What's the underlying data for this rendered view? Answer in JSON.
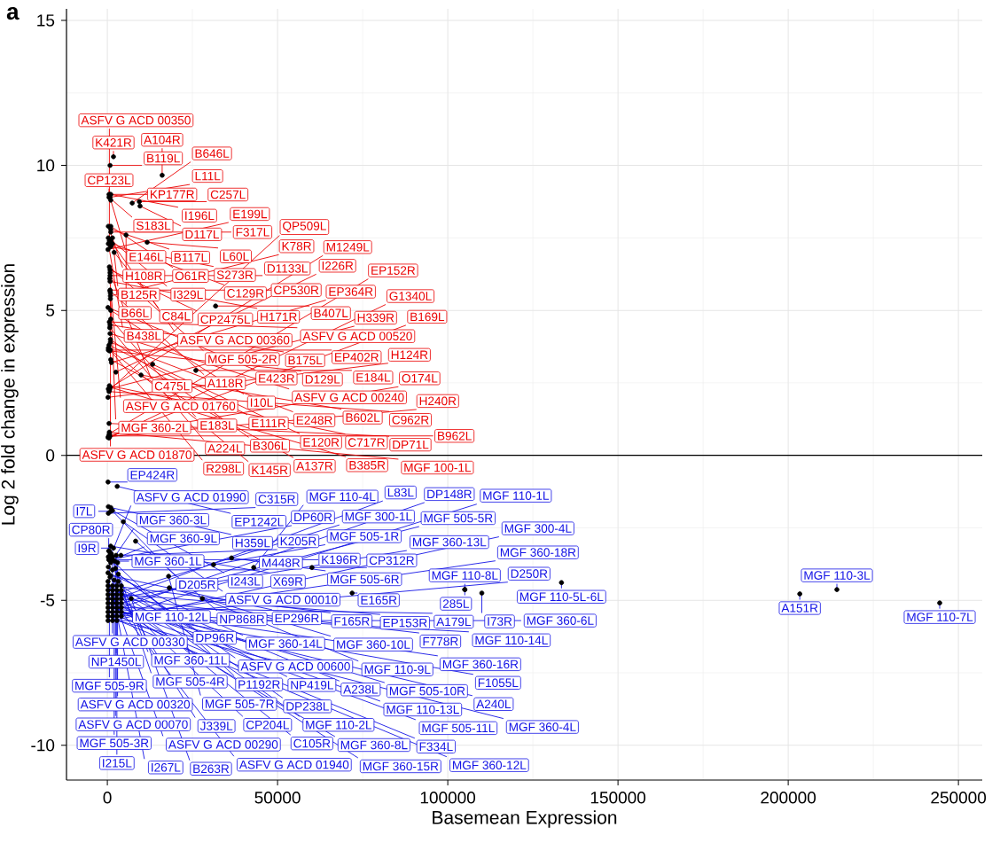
{
  "chart_data": {
    "type": "scatter",
    "title": "a",
    "xlabel": "Basemean Expression",
    "ylabel": "Log 2 fold change in expression",
    "xlim": [
      -12000,
      257000
    ],
    "ylim": [
      -11.2,
      15.4
    ],
    "xticks": [
      0,
      50000,
      100000,
      150000,
      200000,
      250000
    ],
    "yticks": [
      -10,
      -5,
      0,
      5,
      10,
      15
    ],
    "grid": true,
    "marker": "circle",
    "color": "#000000",
    "ref_lines": [
      {
        "axis": "y",
        "value": 0,
        "color": "#000000"
      }
    ],
    "x": [
      1800,
      500,
      800,
      800,
      500,
      1000,
      1000,
      9600,
      300,
      16100,
      1000,
      800,
      1500,
      1000,
      9400,
      300,
      7300,
      5500,
      2000,
      11700,
      1000,
      300,
      1000,
      600,
      1000,
      1500,
      800,
      600,
      800,
      800,
      700,
      800,
      200,
      800,
      800,
      900,
      900,
      900,
      200,
      31800,
      1000,
      1000,
      800,
      700,
      500,
      300,
      600,
      800,
      900,
      900,
      800,
      700,
      300,
      13300,
      26000,
      1000,
      1200,
      9900,
      2500,
      600,
      800,
      700,
      600,
      500,
      300,
      200,
      500,
      600,
      600,
      700,
      400,
      500,
      600,
      200,
      3200,
      2200,
      1500,
      400,
      1000,
      1200,
      1500,
      200,
      2900,
      1000,
      300,
      1500,
      1000,
      4700,
      300,
      1800,
      2600,
      1000,
      300,
      8300,
      600,
      900,
      3000,
      1500,
      200,
      1000,
      2400,
      1000,
      3200,
      4000,
      500,
      300,
      500,
      36500,
      31200,
      43000,
      60100,
      18000,
      800,
      2000,
      200,
      105000,
      133400,
      214300,
      203400,
      244500,
      105000,
      110000,
      200,
      1500,
      18200,
      2800,
      4100,
      71900,
      200,
      1500,
      27900,
      7000,
      2800,
      4100,
      200,
      1500,
      2800,
      4100,
      200,
      1500,
      2800,
      4100,
      200,
      1500,
      2800,
      4100,
      200,
      1500,
      2800,
      4100,
      200,
      1500,
      2800,
      4100,
      200,
      1500,
      2800,
      4100,
      200,
      1500,
      2800
    ],
    "values": [
      10.3,
      9.0,
      10.0,
      9.0,
      8.9,
      9.0,
      8.8,
      8.6,
      7.9,
      9.66,
      7.8,
      8.9,
      7.5,
      7.9,
      8.75,
      7.5,
      8.7,
      7.6,
      7.0,
      7.35,
      7.2,
      7.3,
      7.7,
      7.4,
      7.4,
      7.3,
      6.4,
      6.5,
      6.3,
      6.2,
      6.1,
      6.0,
      7.1,
      5.67,
      5.7,
      5.6,
      5.5,
      5.4,
      5.1,
      5.15,
      5.0,
      4.7,
      4.5,
      4.4,
      3.8,
      3.7,
      4.6,
      4.2,
      4.0,
      3.9,
      3.65,
      3.6,
      3.63,
      3.14,
      2.93,
      3.3,
      3.2,
      2.77,
      2.87,
      2.4,
      2.35,
      2.3,
      2.25,
      2.2,
      2.29,
      2.0,
      1.1,
      0.8,
      0.7,
      0.65,
      0.67,
      0.6,
      0.75,
      0.62,
      -4.35,
      -3.65,
      -3.6,
      -3.3,
      -3.7,
      -3.4,
      -3.5,
      -0.92,
      -1.07,
      -1.8,
      -1.77,
      -1.9,
      -1.93,
      -2.29,
      -2.0,
      -3.2,
      -3.45,
      -3.4,
      -3.85,
      -2.96,
      -3.3,
      -3.4,
      -3.7,
      -3.95,
      -4.05,
      -3.13,
      -3.9,
      -4.15,
      -4.1,
      -3.45,
      -3.6,
      -3.5,
      -3.6,
      -3.54,
      -3.77,
      -3.87,
      -3.87,
      -4.17,
      -4.2,
      -4.3,
      -4.35,
      -4.63,
      -4.39,
      -4.63,
      -4.78,
      -5.09,
      -4.63,
      -4.75,
      -4.5,
      -4.5,
      -4.57,
      -4.5,
      -4.5,
      -4.75,
      -4.65,
      -4.65,
      -4.94,
      -4.94,
      -4.65,
      -4.65,
      -4.8,
      -4.8,
      -4.8,
      -4.8,
      -4.95,
      -4.95,
      -4.95,
      -4.95,
      -5.1,
      -5.1,
      -5.1,
      -5.1,
      -5.25,
      -5.25,
      -5.25,
      -5.25,
      -5.4,
      -5.4,
      -5.4,
      -5.4,
      -5.55,
      -5.55,
      -5.55,
      -5.55,
      -5.7,
      -5.7,
      -5.7
    ],
    "annotations": [
      {
        "text": "K421R",
        "x": 1800,
        "y": 10.3
      },
      {
        "text": "CP123L",
        "x": 500,
        "y": 9.0
      },
      {
        "text": "B119L",
        "x": 800,
        "y": 10.0
      },
      {
        "text": "KP177R",
        "x": 800,
        "y": 9.0
      },
      {
        "text": "S183L",
        "x": 500,
        "y": 8.9
      },
      {
        "text": "I196L",
        "x": 1000,
        "y": 9.0
      },
      {
        "text": "E146L",
        "x": 1000,
        "y": 8.8
      },
      {
        "text": "D117L",
        "x": 9600,
        "y": 8.6
      },
      {
        "text": "H108R",
        "x": 300,
        "y": 7.9
      },
      {
        "text": "A104R",
        "x": 16100,
        "y": 9.66
      },
      {
        "text": "B117L",
        "x": 1000,
        "y": 7.8
      },
      {
        "text": "L11L",
        "x": 800,
        "y": 8.9
      },
      {
        "text": "B125R",
        "x": 1500,
        "y": 7.5
      },
      {
        "text": "O61R",
        "x": 1000,
        "y": 7.9
      },
      {
        "text": "C257L",
        "x": 9400,
        "y": 8.75
      },
      {
        "text": "I329L",
        "x": 300,
        "y": 7.5
      },
      {
        "text": "B646L",
        "x": 7300,
        "y": 8.7
      },
      {
        "text": "B66L",
        "x": 5500,
        "y": 7.6
      },
      {
        "text": "C84L",
        "x": 2000,
        "y": 7.0
      },
      {
        "text": "L60L",
        "x": 11700,
        "y": 7.35
      },
      {
        "text": "S273R",
        "x": 1000,
        "y": 7.2
      },
      {
        "text": "B438L",
        "x": 300,
        "y": 7.3
      },
      {
        "text": "F317L",
        "x": 1000,
        "y": 7.7
      },
      {
        "text": "ASFV G ACD 00350",
        "x": 600,
        "y": 7.4
      },
      {
        "text": "ASFV G ACD 00360",
        "x": 1000,
        "y": 7.4
      },
      {
        "text": "C129R",
        "x": 1500,
        "y": 7.3
      },
      {
        "text": "CP2475L",
        "x": 800,
        "y": 6.4
      },
      {
        "text": "MGF 505-2R",
        "x": 600,
        "y": 6.5
      },
      {
        "text": "C475L",
        "x": 800,
        "y": 6.3
      },
      {
        "text": "D1133L",
        "x": 800,
        "y": 6.2
      },
      {
        "text": "ASFV G ACD 01760",
        "x": 700,
        "y": 6.1
      },
      {
        "text": "H171R",
        "x": 800,
        "y": 6.0
      },
      {
        "text": "E199L",
        "x": 200,
        "y": 7.1
      },
      {
        "text": "A118R",
        "x": 800,
        "y": 5.67
      },
      {
        "text": "CP530R",
        "x": 800,
        "y": 5.7
      },
      {
        "text": "MGF 360-2L",
        "x": 900,
        "y": 5.6
      },
      {
        "text": "K78R",
        "x": 900,
        "y": 5.5
      },
      {
        "text": "ASFV G ACD 01870",
        "x": 900,
        "y": 5.4
      },
      {
        "text": "E423R",
        "x": 200,
        "y": 5.1
      },
      {
        "text": "B407L",
        "x": 31800,
        "y": 5.15
      },
      {
        "text": "I10L",
        "x": 1000,
        "y": 5.0
      },
      {
        "text": "E183L",
        "x": 1000,
        "y": 4.7
      },
      {
        "text": "B175L",
        "x": 800,
        "y": 4.5
      },
      {
        "text": "A224L",
        "x": 700,
        "y": 4.4
      },
      {
        "text": "E111R",
        "x": 500,
        "y": 3.8
      },
      {
        "text": "R298L",
        "x": 300,
        "y": 3.7
      },
      {
        "text": "ASFV G ACD 00520",
        "x": 600,
        "y": 4.6
      },
      {
        "text": "ASFV G ACD 00240",
        "x": 800,
        "y": 4.2
      },
      {
        "text": "B306L",
        "x": 900,
        "y": 4.0
      },
      {
        "text": "E248R",
        "x": 900,
        "y": 3.9
      },
      {
        "text": "K145R",
        "x": 800,
        "y": 3.65
      },
      {
        "text": "D129L",
        "x": 700,
        "y": 3.6
      },
      {
        "text": "EP402R",
        "x": 300,
        "y": 3.63
      },
      {
        "text": "E120R",
        "x": 13300,
        "y": 3.14
      },
      {
        "text": "E184L",
        "x": 26000,
        "y": 2.93
      },
      {
        "text": "A137R",
        "x": 1000,
        "y": 3.3
      },
      {
        "text": "EP364R",
        "x": 1200,
        "y": 3.2
      },
      {
        "text": "B602L",
        "x": 9900,
        "y": 2.77
      },
      {
        "text": "I226R",
        "x": 2500,
        "y": 2.87
      },
      {
        "text": "C717R",
        "x": 600,
        "y": 2.4
      },
      {
        "text": "B385R",
        "x": 800,
        "y": 2.35
      },
      {
        "text": "H339R",
        "x": 700,
        "y": 2.3
      },
      {
        "text": "QP509L",
        "x": 600,
        "y": 2.25
      },
      {
        "text": "C962R",
        "x": 500,
        "y": 2.2
      },
      {
        "text": "M1249L",
        "x": 300,
        "y": 2.29
      },
      {
        "text": "H124R",
        "x": 200,
        "y": 2.0
      },
      {
        "text": "DP71L",
        "x": 500,
        "y": 1.1
      },
      {
        "text": "MGF 100-1L",
        "x": 600,
        "y": 0.8
      },
      {
        "text": "O174L",
        "x": 600,
        "y": 0.7
      },
      {
        "text": "H240R",
        "x": 700,
        "y": 0.65
      },
      {
        "text": "B962L",
        "x": 400,
        "y": 0.67
      },
      {
        "text": "G1340L",
        "x": 500,
        "y": 0.6
      },
      {
        "text": "EP152R",
        "x": 600,
        "y": 0.75
      },
      {
        "text": "B169L",
        "x": 200,
        "y": 0.62
      },
      {
        "text": "MGF 110-12L",
        "x": 3200,
        "y": -4.35
      },
      {
        "text": "MGF 360-1L",
        "x": 2200,
        "y": -3.65
      },
      {
        "text": "MGF 360-9L",
        "x": 1500,
        "y": -3.6
      },
      {
        "text": "CP80R",
        "x": 400,
        "y": -3.3
      },
      {
        "text": "MGF 360-3L",
        "x": 1000,
        "y": -3.7
      },
      {
        "text": "ASFV G ACD 01990",
        "x": 1200,
        "y": -3.4
      },
      {
        "text": "ASFV G ACD 00330",
        "x": 1500,
        "y": -3.5
      },
      {
        "text": "EP424R",
        "x": 200,
        "y": -0.92
      },
      {
        "text": "EP1242L",
        "x": 2900,
        "y": -1.07
      },
      {
        "text": "H359L",
        "x": 1000,
        "y": -1.8
      },
      {
        "text": "D205R",
        "x": 300,
        "y": -1.77
      },
      {
        "text": "I243L",
        "x": 1500,
        "y": -1.9
      },
      {
        "text": "I7L",
        "x": 1000,
        "y": -1.93
      },
      {
        "text": "ASFV G ACD 00010",
        "x": 4700,
        "y": -2.29
      },
      {
        "text": "C315R",
        "x": 300,
        "y": -2.0
      },
      {
        "text": "I9R",
        "x": 1800,
        "y": -3.2
      },
      {
        "text": "NP1450L",
        "x": 2600,
        "y": -3.45
      },
      {
        "text": "MGF 360-11L",
        "x": 1000,
        "y": -3.4
      },
      {
        "text": "DP96R",
        "x": 300,
        "y": -3.85
      },
      {
        "text": "NP868R",
        "x": 8300,
        "y": -2.96
      },
      {
        "text": "MGF 505-9R",
        "x": 600,
        "y": -3.3
      },
      {
        "text": "MGF 505-4R",
        "x": 900,
        "y": -3.4
      },
      {
        "text": "ASFV G ACD 00320",
        "x": 3000,
        "y": -3.7
      },
      {
        "text": "M448R",
        "x": 1500,
        "y": -3.95
      },
      {
        "text": "MGF 360-14L",
        "x": 200,
        "y": -4.05
      },
      {
        "text": "X69R",
        "x": 1000,
        "y": -3.13
      },
      {
        "text": "ASFV G ACD 00070",
        "x": 2400,
        "y": -3.9
      },
      {
        "text": "EP296R",
        "x": 1000,
        "y": -4.15
      },
      {
        "text": "ASFV G ACD 00600",
        "x": 3200,
        "y": -4.1
      },
      {
        "text": "K205R",
        "x": 4000,
        "y": -3.45
      },
      {
        "text": "DP60R",
        "x": 500,
        "y": -3.6
      },
      {
        "text": "P1192R",
        "x": 300,
        "y": -3.5
      },
      {
        "text": "K196R",
        "x": 500,
        "y": -3.6
      },
      {
        "text": "MGF 505-6R",
        "x": 36500,
        "y": -3.54
      },
      {
        "text": "MGF 505-1R",
        "x": 31200,
        "y": -3.77
      },
      {
        "text": "MGF 110-4L",
        "x": 43000,
        "y": -3.87
      },
      {
        "text": "CP312R",
        "x": 60100,
        "y": -3.87
      },
      {
        "text": "MGF 505-7R",
        "x": 18000,
        "y": -4.17
      },
      {
        "text": "J339L",
        "x": 800,
        "y": -4.2
      },
      {
        "text": "MGF 505-3R",
        "x": 2000,
        "y": -4.3
      },
      {
        "text": "ASFV G ACD 00290",
        "x": 200,
        "y": -4.35
      },
      {
        "text": "MGF 110-8L",
        "x": 105000,
        "y": -4.63
      },
      {
        "text": "MGF 110-5L-6L",
        "x": 133400,
        "y": -4.39
      },
      {
        "text": "MGF 110-3L",
        "x": 214300,
        "y": -4.63
      },
      {
        "text": "A151R",
        "x": 203400,
        "y": -4.78
      },
      {
        "text": "MGF 110-7L",
        "x": 244500,
        "y": -5.09
      },
      {
        "text": "285L",
        "x": 105000,
        "y": -4.63
      },
      {
        "text": "I73R",
        "x": 110000,
        "y": -4.75
      },
      {
        "text": "NP419L",
        "x": 200,
        "y": -4.5
      },
      {
        "text": "F165R",
        "x": 1500,
        "y": -4.5
      },
      {
        "text": "MGF 360-10L",
        "x": 18200,
        "y": -4.57
      },
      {
        "text": "I215L",
        "x": 2800,
        "y": -4.5
      },
      {
        "text": "DP238L",
        "x": 4100,
        "y": -4.5
      },
      {
        "text": "E165R",
        "x": 71900,
        "y": -4.75
      },
      {
        "text": "CP204L",
        "x": 200,
        "y": -4.65
      },
      {
        "text": "I267L",
        "x": 1500,
        "y": -4.65
      },
      {
        "text": "MGF 110-9L",
        "x": 27900,
        "y": -4.94
      },
      {
        "text": "B263R",
        "x": 7000,
        "y": -4.94
      },
      {
        "text": "MGF 110-2L",
        "x": 2800,
        "y": -4.65
      },
      {
        "text": "A238L",
        "x": 4100,
        "y": -4.65
      },
      {
        "text": "ASFV G ACD 01940",
        "x": 200,
        "y": -4.8
      },
      {
        "text": "MGF 300-1L",
        "x": 1500,
        "y": -4.8
      },
      {
        "text": "C105R",
        "x": 2800,
        "y": -4.8
      },
      {
        "text": "EP153R",
        "x": 4100,
        "y": -4.8
      },
      {
        "text": "MGF 505-10R",
        "x": 200,
        "y": -4.95
      },
      {
        "text": "MGF 360-13L",
        "x": 1500,
        "y": -4.95
      },
      {
        "text": "L83L",
        "x": 2800,
        "y": -4.95
      },
      {
        "text": "F778R",
        "x": 4100,
        "y": -4.95
      },
      {
        "text": "MGF 360-8L",
        "x": 200,
        "y": -5.1
      },
      {
        "text": "MGF 110-13L",
        "x": 1500,
        "y": -5.1
      },
      {
        "text": "MGF 360-15R",
        "x": 2800,
        "y": -5.1
      },
      {
        "text": "MGF 505-5R",
        "x": 4100,
        "y": -5.1
      },
      {
        "text": "MGF 360-16R",
        "x": 200,
        "y": -5.25
      },
      {
        "text": "MGF 505-11L",
        "x": 1500,
        "y": -5.25
      },
      {
        "text": "A179L",
        "x": 2800,
        "y": -5.25
      },
      {
        "text": "DP148R",
        "x": 4100,
        "y": -5.25
      },
      {
        "text": "F334L",
        "x": 200,
        "y": -5.4
      },
      {
        "text": "MGF 110-14L",
        "x": 1500,
        "y": -5.4
      },
      {
        "text": "F1055L",
        "x": 2800,
        "y": -5.4
      },
      {
        "text": "A240L",
        "x": 4100,
        "y": -5.4
      },
      {
        "text": "MGF 360-12L",
        "x": 200,
        "y": -5.55
      },
      {
        "text": "MGF 360-18R",
        "x": 1500,
        "y": -5.55
      },
      {
        "text": "MGF 110-1L",
        "x": 2800,
        "y": -5.55
      },
      {
        "text": "D250R",
        "x": 4100,
        "y": -5.55
      },
      {
        "text": "MGF 360-6L",
        "x": 200,
        "y": -5.7
      },
      {
        "text": "MGF 300-4L",
        "x": 1500,
        "y": -5.7
      },
      {
        "text": "MGF 360-4L",
        "x": 2800,
        "y": -5.7
      }
    ]
  }
}
